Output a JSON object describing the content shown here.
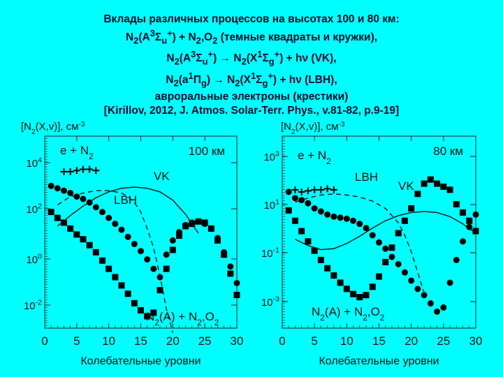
{
  "title_lines": [
    "Вклады различных процессов на высотах 100 и 80 км:",
    "N2(A3Σu+) + N2,O2 (темные квадраты и кружки),",
    "N2(A3Σu+) → N2(X1Σg+) + hν (VK),",
    "N2(a1Πg) → N2(X1Σg+) + hν (LBH),",
    "авроральные электроны (крестики)",
    "[Kirillov, 2012, J. Atmos. Solar-Terr. Phys., v.81-82, p.9-19]"
  ],
  "chart_data": [
    {
      "type": "scatter",
      "ylabel": "[N2(X,v)], см-3",
      "xlabel": "Колебательные уровни",
      "altitude_label": "100 км",
      "xlim": [
        0,
        30
      ],
      "ylim_log10": [
        -2.8,
        5.3
      ],
      "log_y": true,
      "x_ticks": [
        "0",
        "5",
        "10",
        "15",
        "20",
        "25",
        "30"
      ],
      "y_ticks": [
        "10-2",
        "100",
        "102",
        "104"
      ],
      "legend_labels": [
        "e + N2",
        "VK",
        "LBH",
        "N2(A) + N2,O2"
      ],
      "series": [
        {
          "name": "e + N2",
          "marker": "cross",
          "x": [
            3,
            4,
            5,
            6,
            7,
            8
          ],
          "y_log10": [
            3.8,
            3.8,
            3.85,
            3.9,
            3.9,
            3.85
          ]
        },
        {
          "marker": "circle",
          "x": [
            1,
            2,
            3,
            4,
            5,
            6,
            7,
            8,
            9,
            10,
            11,
            12,
            13,
            14,
            15,
            16,
            17,
            18,
            19,
            20,
            21,
            22,
            23,
            24,
            25,
            26,
            27,
            28,
            29,
            30
          ],
          "y_log10": [
            3.2,
            3.1,
            3.0,
            2.9,
            2.75,
            2.65,
            2.5,
            2.3,
            2.1,
            1.85,
            1.6,
            1.35,
            1.05,
            0.75,
            0.45,
            0.1,
            -0.3,
            -0.65,
            0.3,
            0.9,
            1.25,
            1.55,
            1.65,
            1.7,
            1.6,
            1.4,
            1.0,
            0.4,
            -0.2,
            -0.9
          ]
        },
        {
          "marker": "square",
          "x": [
            1,
            2,
            3,
            4,
            5,
            6,
            7,
            8,
            9,
            10,
            11,
            12,
            13,
            14,
            15,
            16,
            17,
            18,
            19,
            20,
            21,
            22,
            23,
            24,
            25,
            26,
            27,
            28,
            29,
            30
          ],
          "y_log10": [
            2.1,
            1.85,
            1.65,
            1.4,
            1.15,
            0.95,
            0.7,
            0.4,
            0.05,
            -0.3,
            -0.65,
            -1.0,
            -1.35,
            -1.75,
            -2.05,
            -2.3,
            -2.15,
            -1.2,
            -0.3,
            0.5,
            1.1,
            1.5,
            1.6,
            1.7,
            1.65,
            1.4,
            0.9,
            0.3,
            -0.5,
            -1.4
          ]
        },
        {
          "name": "VK",
          "style": "solid",
          "x": [
            2,
            4,
            6,
            8,
            10,
            12,
            14,
            16,
            18,
            20,
            22,
            24
          ],
          "y_log10": [
            1.5,
            1.95,
            2.35,
            2.7,
            2.95,
            3.1,
            3.15,
            3.1,
            2.95,
            2.6,
            2.0,
            1.2
          ]
        },
        {
          "name": "LBH",
          "style": "dashed",
          "x": [
            2,
            4,
            6,
            8,
            10,
            12,
            13,
            14,
            15,
            16,
            17,
            18,
            19,
            20
          ],
          "y_log10": [
            2.4,
            2.75,
            2.9,
            3.0,
            3.0,
            2.9,
            2.75,
            2.5,
            2.1,
            1.4,
            0.6,
            -0.6,
            -2.0,
            -3.0
          ]
        }
      ]
    },
    {
      "type": "scatter",
      "ylabel": "[N2(X,v)], см-3",
      "xlabel": "Колебательные уровни",
      "altitude_label": "80 км",
      "xlim": [
        0,
        30
      ],
      "ylim_log10": [
        -4.7,
        4.6
      ],
      "log_y": true,
      "x_ticks": [
        "0",
        "5",
        "10",
        "15",
        "20",
        "25",
        "30"
      ],
      "y_ticks": [
        "10-3",
        "10-1",
        "101",
        "103"
      ],
      "legend_labels": [
        "e + N2",
        "LBH",
        "VK",
        "N2(A) + N2,O2"
      ],
      "series": [
        {
          "name": "e + N2",
          "marker": "cross",
          "x": [
            2,
            3,
            4,
            5,
            6,
            7,
            8
          ],
          "y_log10": [
            2.0,
            1.9,
            1.95,
            2.0,
            2.0,
            2.05,
            2.0
          ]
        },
        {
          "marker": "circle",
          "x": [
            1,
            2,
            3,
            4,
            5,
            6,
            7,
            8,
            9,
            10,
            11,
            12,
            13,
            14,
            15,
            16,
            17,
            18,
            19,
            20,
            21,
            22,
            23,
            24,
            25,
            26,
            27,
            28,
            29,
            30
          ],
          "y_log10": [
            1.9,
            1.6,
            1.5,
            1.35,
            1.1,
            0.95,
            0.8,
            0.7,
            0.65,
            0.6,
            0.5,
            0.35,
            0.15,
            -0.2,
            -0.55,
            -0.85,
            -1.25,
            -1.6,
            -2.0,
            -2.4,
            -2.8,
            -3.1,
            -3.5,
            -3.9,
            -3.7,
            -2.5,
            -1.4,
            -0.5,
            0.2,
            0.8
          ]
        },
        {
          "marker": "square",
          "x": [
            1,
            2,
            3,
            4,
            5,
            6,
            7,
            8,
            9,
            10,
            11,
            12,
            13,
            14,
            15,
            16,
            17,
            18,
            19,
            20,
            21,
            22,
            23,
            24,
            25,
            26,
            27,
            28,
            29,
            30
          ],
          "y_log10": [
            1.0,
            0.5,
            0.0,
            -0.5,
            -0.95,
            -1.4,
            -1.8,
            -2.15,
            -2.5,
            -2.8,
            -3.05,
            -3.2,
            -3.1,
            -2.7,
            -2.2,
            -1.5,
            -0.8,
            -0.1,
            0.5,
            1.1,
            1.8,
            2.3,
            2.5,
            2.3,
            2.15,
            2.0,
            1.3,
            0.9,
            0.5,
            0.0
          ]
        },
        {
          "name": "VK",
          "style": "solid",
          "x": [
            2,
            4,
            6,
            8,
            10,
            12,
            14,
            16,
            18,
            20,
            22,
            24,
            26,
            28,
            30
          ],
          "y_log10": [
            -0.4,
            -0.7,
            -0.9,
            -0.85,
            -0.6,
            -0.25,
            0.15,
            0.5,
            0.75,
            0.9,
            0.95,
            0.9,
            0.7,
            0.35,
            -0.1
          ]
        },
        {
          "name": "LBH",
          "style": "dashed",
          "x": [
            2,
            4,
            6,
            8,
            10,
            12,
            14,
            16,
            18,
            19,
            20,
            21,
            22
          ],
          "y_log10": [
            1.4,
            1.6,
            1.75,
            1.8,
            1.75,
            1.65,
            1.45,
            1.1,
            0.4,
            -0.2,
            -1.0,
            -2.0,
            -3.0
          ]
        }
      ]
    }
  ]
}
